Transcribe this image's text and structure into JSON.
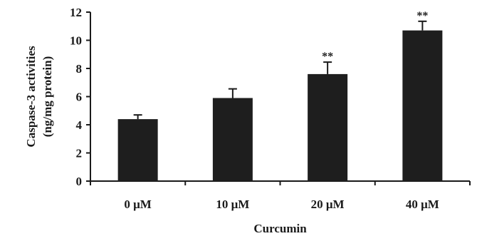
{
  "chart_data": {
    "type": "bar",
    "categories": [
      "0 μM",
      "10 μM",
      "20 μM",
      "40 μM"
    ],
    "values": [
      4.4,
      5.9,
      7.6,
      10.7
    ],
    "error": [
      0.3,
      0.65,
      0.85,
      0.65
    ],
    "annotations": [
      "",
      "",
      "**",
      "**"
    ],
    "xlabel": "Curcumin",
    "ylabel_lines": [
      "Caspase-3 activities",
      "(ng/mg protein)"
    ],
    "ylim": [
      0,
      12
    ],
    "yticks": [
      0,
      2,
      4,
      6,
      8,
      10,
      12
    ],
    "bar_color": "#1e1e1e",
    "grid": false,
    "legend": "none"
  }
}
